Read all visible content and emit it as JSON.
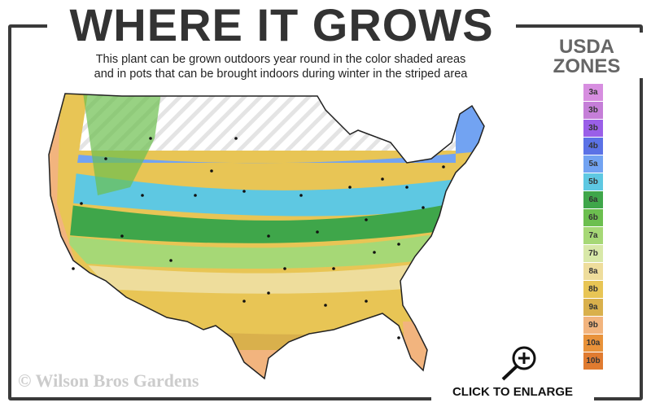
{
  "header": {
    "title": "WHERE IT GROWS",
    "subtitle_line1": "This plant can be grown outdoors year round in the color shaded areas",
    "subtitle_line2": "and in pots that can be brought indoors during winter in the striped area"
  },
  "legend": {
    "title_line1": "USDA",
    "title_line2": "ZONES",
    "zones": [
      {
        "label": "3a",
        "color": "#d78ee0"
      },
      {
        "label": "3b",
        "color": "#c57ed8"
      },
      {
        "label": "3b",
        "color": "#9a5fe8"
      },
      {
        "label": "4b",
        "color": "#5b72e6"
      },
      {
        "label": "5a",
        "color": "#72a3f2"
      },
      {
        "label": "5b",
        "color": "#5ec8e2"
      },
      {
        "label": "6a",
        "color": "#3fa64a"
      },
      {
        "label": "6b",
        "color": "#6cbf4f"
      },
      {
        "label": "7a",
        "color": "#a6d876"
      },
      {
        "label": "7b",
        "color": "#d8e8a8"
      },
      {
        "label": "8a",
        "color": "#eedd9c"
      },
      {
        "label": "8b",
        "color": "#e8c555"
      },
      {
        "label": "9a",
        "color": "#d9b04c"
      },
      {
        "label": "9b",
        "color": "#f2b47e"
      },
      {
        "label": "10a",
        "color": "#e8923a"
      },
      {
        "label": "10b",
        "color": "#e07b30"
      }
    ]
  },
  "footer": {
    "copyright": "© Wilson Bros Gardens",
    "enlarge_label": "CLICK TO ENLARGE"
  }
}
